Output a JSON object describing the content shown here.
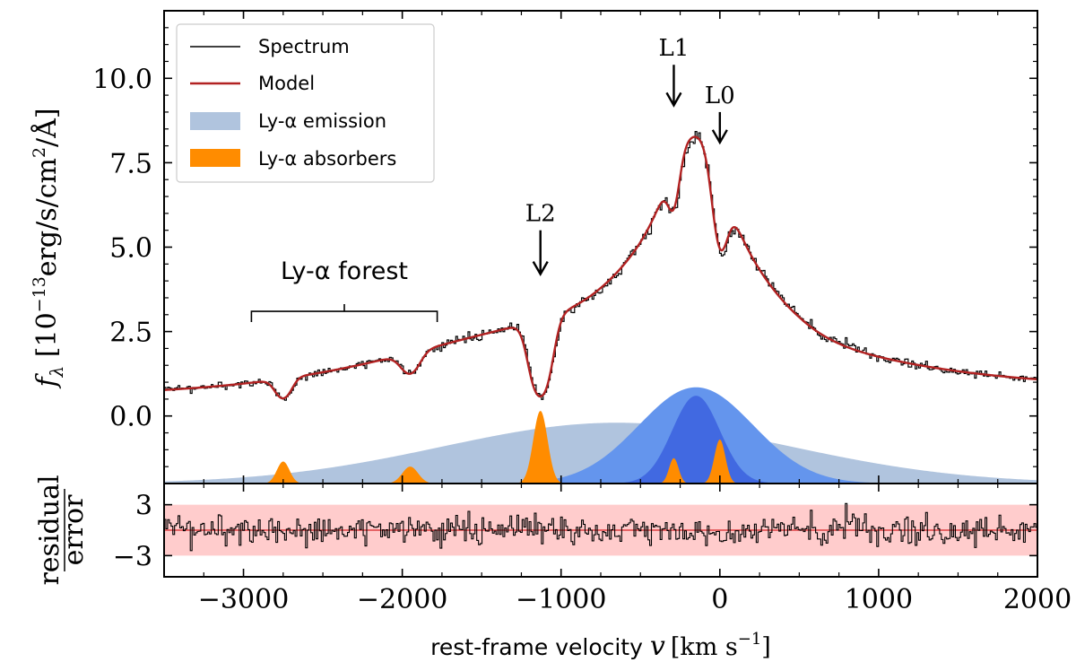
{
  "chart_data": [
    {
      "panel": "main",
      "type": "line",
      "xlabel": "rest-frame velocity v [km s⁻¹]",
      "ylabel": "fλ [10⁻¹³erg/s/cm²/Å]",
      "xlim": [
        -3500,
        2000
      ],
      "ylim": [
        -2.0,
        12.0
      ],
      "x_ticks": [
        -3000,
        -2000,
        -1000,
        0,
        1000,
        2000
      ],
      "x_tick_labels": [
        "−3000",
        "−2000",
        "−1000",
        "0",
        "1000",
        "2000"
      ],
      "y_ticks": [
        0.0,
        2.5,
        5.0,
        7.5,
        10.0
      ],
      "y_tick_labels": [
        "0.0",
        "2.5",
        "5.0",
        "7.5",
        "10.0"
      ],
      "legend": {
        "position": "top-left",
        "entries": [
          {
            "label": "Spectrum",
            "color": "#000000",
            "style": "line"
          },
          {
            "label": "Model",
            "color": "#b22222",
            "style": "line"
          },
          {
            "label": "Ly-α emission",
            "color": "#b0c4de",
            "style": "patch"
          },
          {
            "label": "Ly-α absorbers",
            "color": "#ff8c00",
            "style": "patch"
          }
        ]
      },
      "series": [
        {
          "name": "Spectrum",
          "color": "#000000",
          "style": "step",
          "description": "observed spectrum, follows model with noise"
        },
        {
          "name": "Model",
          "color": "#b22222",
          "style": "line",
          "continuum": {
            "base": 1.25,
            "slope_per_kms": 9e-05
          },
          "emission": [
            {
              "name": "broad",
              "center": -650,
              "sigma": 1100,
              "amplitude": 2.0
            },
            {
              "name": "intermediate",
              "center": -150,
              "sigma": 360,
              "amplitude": 3.2
            },
            {
              "name": "narrow",
              "center": -150,
              "sigma": 150,
              "amplitude": 2.2
            }
          ],
          "absorbers": [
            {
              "name": "L0",
              "center": 0,
              "sigma": 45,
              "tau": 0.35
            },
            {
              "name": "L1",
              "center": -290,
              "sigma": 35,
              "tau": 0.18
            },
            {
              "name": "L2",
              "center": -1130,
              "sigma": 55,
              "tau": 1.6
            },
            {
              "name": "forest-1",
              "center": -2750,
              "sigma": 45,
              "tau": 0.75
            },
            {
              "name": "forest-2",
              "center": -1950,
              "sigma": 55,
              "tau": 0.4
            }
          ]
        },
        {
          "name": "Ly-α emission (broad)",
          "color": "#b0c4de",
          "style": "fill",
          "center": -650,
          "sigma": 1100,
          "peak": -0.2
        },
        {
          "name": "Ly-α emission (intermediate)",
          "color": "#6495ed",
          "style": "fill",
          "center": -150,
          "sigma": 360,
          "peak": 0.85
        },
        {
          "name": "Ly-α emission (narrow)",
          "color": "#4169e1",
          "style": "fill",
          "center": -150,
          "sigma": 150,
          "peak": 0.6
        },
        {
          "name": "Ly-α absorbers",
          "color": "#ff8c00",
          "style": "fill",
          "bumps": [
            {
              "center": -2750,
              "sigma": 40,
              "peak": -1.35
            },
            {
              "center": -1950,
              "sigma": 50,
              "peak": -1.5
            },
            {
              "center": -1130,
              "sigma": 45,
              "peak": 0.15
            },
            {
              "center": -290,
              "sigma": 30,
              "peak": -1.25
            },
            {
              "center": 0,
              "sigma": 35,
              "peak": -0.7
            }
          ]
        }
      ],
      "annotations": [
        {
          "label": "L0",
          "x": 0,
          "arrow_from_y": 9.0,
          "arrow_to_y": 8.1
        },
        {
          "label": "L1",
          "x": -290,
          "arrow_from_y": 10.4,
          "arrow_to_y": 9.2
        },
        {
          "label": "L2",
          "x": -1130,
          "arrow_from_y": 5.5,
          "arrow_to_y": 4.2
        },
        {
          "label": "Ly-α forest",
          "x_range": [
            -2950,
            -1780
          ],
          "y": 3.1,
          "label_y": 4.0
        }
      ]
    },
    {
      "panel": "residual",
      "type": "line",
      "ylabel": "residual / error",
      "ylim": [
        -5.5,
        5.5
      ],
      "y_ticks": [
        -3,
        3
      ],
      "y_tick_labels": [
        "−3",
        "3"
      ],
      "band": {
        "range": [
          -3,
          3
        ],
        "color": "#ffcccc"
      },
      "zero_line_color": "#d62728",
      "series": [
        {
          "name": "residual",
          "color": "#000000",
          "style": "step"
        }
      ]
    }
  ],
  "labels": {
    "xlabel_prefix": "rest-frame velocity ",
    "xlabel_var": "v",
    "xlabel_units": "[km s",
    "xlabel_exp": "−1",
    "xlabel_close": "]",
    "ylabel_f": "f",
    "ylabel_sub": "λ",
    "ylabel_open": " [10",
    "ylabel_exp1": "−13",
    "ylabel_mid": "erg/s/cm",
    "ylabel_exp2": "2",
    "ylabel_end": "/Å]",
    "residual_num": "residual",
    "residual_den": "error"
  }
}
